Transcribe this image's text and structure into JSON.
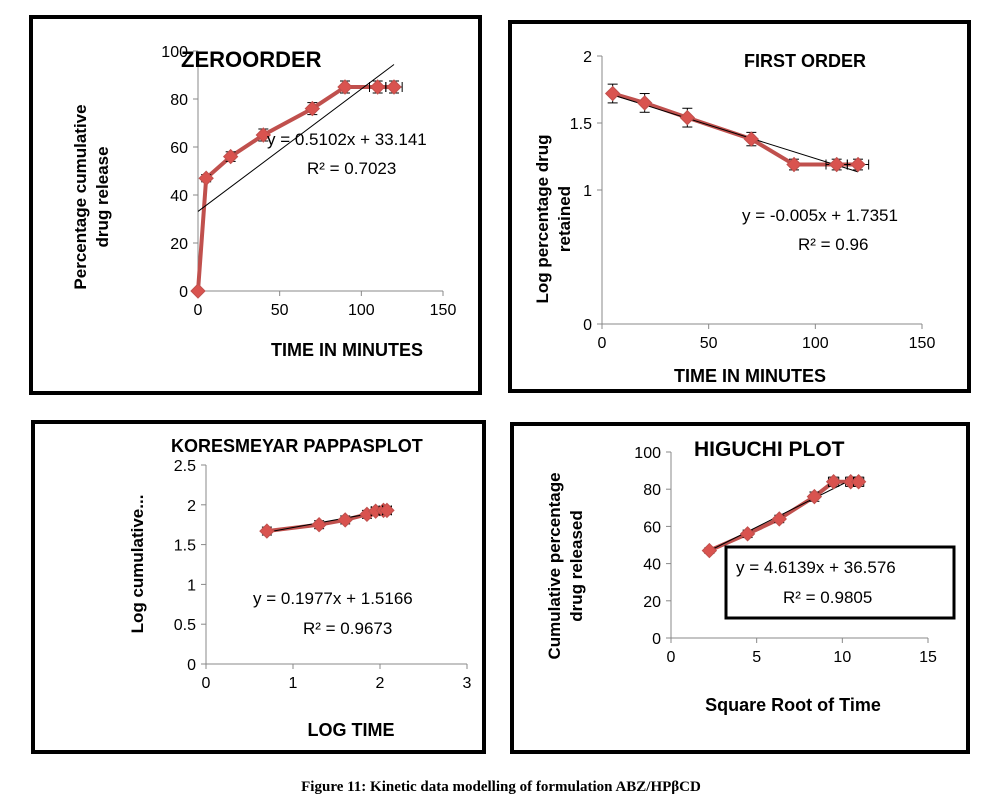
{
  "figure_caption": "Figure 11: Kinetic data modelling of formulation ABZ/HPβCD",
  "colors": {
    "series": "#c0504d",
    "marker": "#d9534f",
    "trend": "#000000",
    "frame": "#000000"
  },
  "chart_data": [
    {
      "type": "line",
      "title": "ZEROORDER",
      "xlabel": "TIME IN MINUTES",
      "ylabel": [
        "Percentage cumulative",
        "drug release"
      ],
      "xlim": [
        0,
        150
      ],
      "ylim": [
        0,
        100
      ],
      "xticks": [
        "0",
        "50",
        "100",
        "150"
      ],
      "xtick_values": [
        0,
        50,
        100,
        150
      ],
      "yticks": [
        "0",
        "20",
        "40",
        "60",
        "80",
        "100"
      ],
      "ytick_values": [
        0,
        20,
        40,
        60,
        80,
        100
      ],
      "x": [
        0,
        5,
        20,
        40,
        70,
        90,
        110,
        120
      ],
      "y": [
        0,
        47,
        56,
        65,
        76,
        85,
        85,
        85
      ],
      "error": [
        0,
        1.5,
        2,
        2.5,
        2.5,
        2.5,
        2.5,
        2.5
      ],
      "xerror": [
        0,
        0,
        0,
        0,
        0,
        0,
        5,
        5
      ],
      "trendline": {
        "slope": 0.5102,
        "intercept": 33.141,
        "x_start": 0,
        "x_end": 120
      },
      "equation": "y = 0.5102x + 33.141",
      "r2": "R² = 0.7023",
      "grid": false,
      "legend": "none"
    },
    {
      "type": "line",
      "title": "FIRST ORDER",
      "xlabel": "TIME IN MINUTES",
      "ylabel": [
        "Log percentage drug",
        "retained"
      ],
      "xlim": [
        0,
        150
      ],
      "ylim": [
        0,
        2
      ],
      "xticks": [
        "0",
        "50",
        "100",
        "150"
      ],
      "xtick_values": [
        0,
        50,
        100,
        150
      ],
      "yticks": [
        "0",
        "1",
        "1.5",
        "2"
      ],
      "ytick_values": [
        0,
        1,
        1.5,
        2
      ],
      "x": [
        5,
        20,
        40,
        70,
        90,
        110,
        120
      ],
      "y": [
        1.72,
        1.65,
        1.54,
        1.38,
        1.19,
        1.19,
        1.19
      ],
      "error": [
        0.07,
        0.07,
        0.07,
        0.05,
        0.04,
        0.04,
        0.04
      ],
      "xerror": [
        0,
        0,
        0,
        0,
        0,
        5,
        5
      ],
      "trendline": {
        "slope": -0.005,
        "intercept": 1.7351,
        "x_start": 5,
        "x_end": 120
      },
      "equation": "y = -0.005x + 1.7351",
      "r2": "R² = 0.96",
      "grid": false,
      "legend": "none"
    },
    {
      "type": "line",
      "title": "KORESMEYAR   PAPPASPLOT",
      "xlabel": "LOG TIME",
      "ylabel": [
        "Log cumulative..."
      ],
      "xlim": [
        0,
        3
      ],
      "ylim": [
        0,
        2.5
      ],
      "xticks": [
        "0",
        "1",
        "2",
        "3"
      ],
      "xtick_values": [
        0,
        1,
        2,
        3
      ],
      "yticks": [
        "0",
        "0.5",
        "1",
        "1.5",
        "2",
        "2.5"
      ],
      "ytick_values": [
        0,
        0.5,
        1,
        1.5,
        2,
        2.5
      ],
      "x": [
        0.7,
        1.3,
        1.6,
        1.85,
        1.95,
        2.04,
        2.08
      ],
      "y": [
        1.67,
        1.75,
        1.81,
        1.88,
        1.92,
        1.93,
        1.93
      ],
      "error": [
        0.05,
        0.05,
        0.05,
        0.05,
        0.05,
        0.05,
        0.05
      ],
      "xerror": [
        0,
        0,
        0,
        0,
        0.05,
        0.05,
        0.05
      ],
      "trendline": {
        "slope": 0.1977,
        "intercept": 1.5166,
        "x_start": 0.7,
        "x_end": 2.08
      },
      "equation": "y = 0.1977x + 1.5166",
      "r2": "R² = 0.9673",
      "grid": false,
      "legend": "none"
    },
    {
      "type": "line",
      "title": "HIGUCHI PLOT",
      "xlabel": "Square Root of Time",
      "ylabel": [
        "Cumulative percentage",
        "drug released"
      ],
      "xlim": [
        0,
        15
      ],
      "ylim": [
        0,
        100
      ],
      "xticks": [
        "0",
        "5",
        "10",
        "15"
      ],
      "xtick_values": [
        0,
        5,
        10,
        15
      ],
      "yticks": [
        "0",
        "20",
        "40",
        "60",
        "80",
        "100"
      ],
      "ytick_values": [
        0,
        20,
        40,
        60,
        80,
        100
      ],
      "x": [
        2.24,
        4.47,
        6.32,
        8.37,
        9.49,
        10.49,
        10.95
      ],
      "y": [
        47,
        56,
        64,
        76,
        84,
        84,
        84
      ],
      "error": [
        1.5,
        2,
        2,
        2.5,
        2.5,
        2.5,
        2.5
      ],
      "xerror": [
        0,
        0,
        0,
        0,
        0.3,
        0.3,
        0.3
      ],
      "trendline": {
        "slope": 4.6139,
        "intercept": 36.576,
        "x_start": 2.24,
        "x_end": 10.95
      },
      "equation": "y = 4.6139x + 36.576",
      "r2": "R² = 0.9805",
      "grid": false,
      "legend": "none"
    }
  ]
}
